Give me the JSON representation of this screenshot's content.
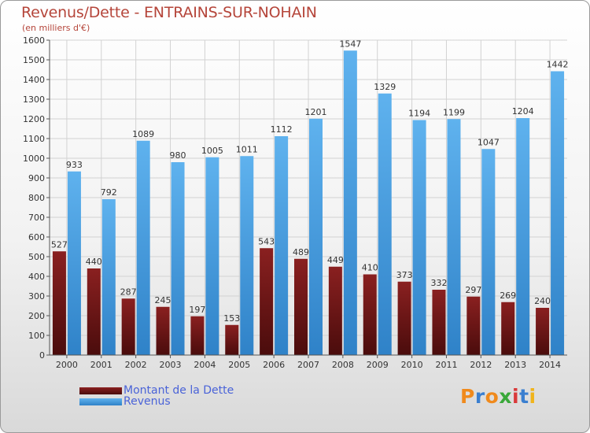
{
  "title": "Revenus/Dette - ENTRAINS-SUR-NOHAIN",
  "subtitle": "(en milliers d'€)",
  "legend": [
    {
      "label": "Montant de la Dette",
      "color": "#6e1515"
    },
    {
      "label": "Revenus",
      "color": "#4a9fe0"
    }
  ],
  "logo": "Proxiti",
  "chart_data": {
    "type": "bar",
    "title": "Revenus/Dette - ENTRAINS-SUR-NOHAIN",
    "subtitle": "(en milliers d'€)",
    "categories": [
      "2000",
      "2001",
      "2002",
      "2003",
      "2004",
      "2005",
      "2006",
      "2007",
      "2008",
      "2009",
      "2010",
      "2011",
      "2012",
      "2013",
      "2014"
    ],
    "series": [
      {
        "name": "Montant de la Dette",
        "values": [
          527,
          440,
          287,
          245,
          197,
          153,
          543,
          489,
          449,
          410,
          373,
          332,
          297,
          269,
          240
        ],
        "color": "#6e1515"
      },
      {
        "name": "Revenus",
        "values": [
          933,
          792,
          1089,
          980,
          1005,
          1011,
          1112,
          1201,
          1547,
          1329,
          1194,
          1199,
          1047,
          1204,
          1442
        ],
        "color": "#4a9fe0"
      }
    ],
    "yticks": [
      0,
      100,
      200,
      300,
      400,
      500,
      600,
      700,
      800,
      900,
      1000,
      1100,
      1200,
      1300,
      1400,
      1500,
      1600
    ],
    "ylim": [
      0,
      1600
    ],
    "grid": true,
    "legend_position": "bottom-left"
  }
}
